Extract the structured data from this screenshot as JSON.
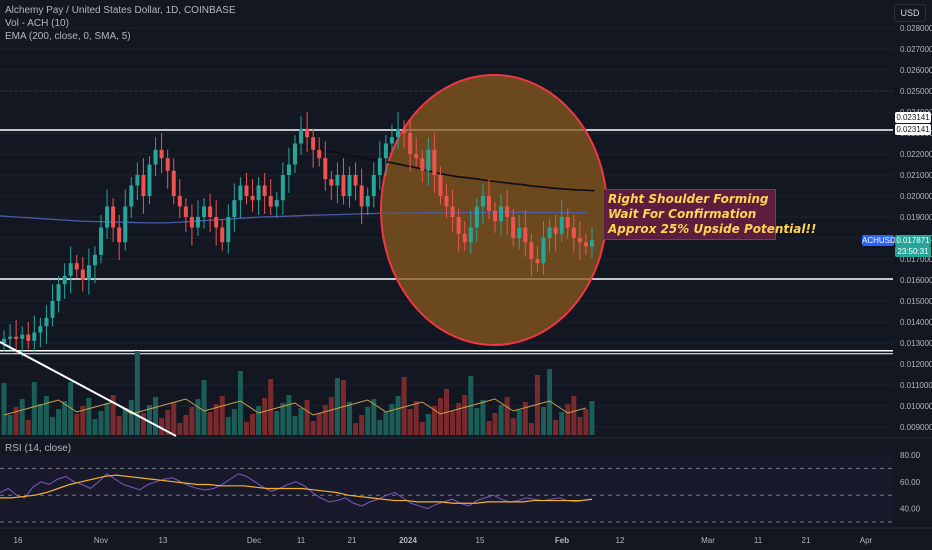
{
  "header": {
    "title": "Alchemy Pay / United States Dollar, 1D, COINBASE",
    "vol_label": "Vol - ACH (10)",
    "ema_label": "EMA (200, close, 0, SMA, 5)",
    "currency_button": "USD"
  },
  "price_axis": {
    "ticks": [
      "0.028000",
      "0.027000",
      "0.026000",
      "0.025000",
      "0.024000",
      "0.023000",
      "0.022000",
      "0.021000",
      "0.020000",
      "0.019000",
      "0.018000",
      "0.017000",
      "0.016000",
      "0.015000",
      "0.014000",
      "0.013000",
      "0.012000",
      "0.011000",
      "0.010000",
      "0.009000"
    ],
    "level_tags": [
      "0.023141",
      "0.023141"
    ],
    "symbol_tag": "ACHUSD",
    "last_price": "0.017871",
    "countdown": "23:50:31"
  },
  "rsi": {
    "label": "RSI (14, close)",
    "ticks": [
      "80.00",
      "60.00",
      "40.00"
    ]
  },
  "time_axis": {
    "labels": [
      "16",
      "Nov",
      "13",
      "Dec",
      "11",
      "21",
      "2024",
      "15",
      "Feb",
      "12",
      "Mar",
      "11",
      "21",
      "Apr"
    ]
  },
  "annotation": {
    "lines": [
      "Right Shoulder Forming",
      "Wait For Confirmation",
      "Approx 25% Upside Potential!!"
    ]
  },
  "colors": {
    "background": "#131722",
    "up_candle": "#26a69a",
    "down_candle": "#ef5350",
    "ema": "#4a5ba8",
    "circle_fill": "#8a5a1e",
    "circle_stroke": "#f23645",
    "annotation_text": "#ffd54f",
    "rsi_line": "#7e57c2",
    "rsi_ma": "#f2b12b"
  },
  "chart_data": {
    "type": "candlestick",
    "symbol": "ACHUSD",
    "y_range": [
      0.0085,
      0.0285
    ],
    "horizontal_levels": [
      0.023141,
      0.01605,
      0.01263
    ],
    "last_price": 0.017871,
    "closes": [
      0.0132,
      0.0133,
      0.0132,
      0.0134,
      0.0131,
      0.0135,
      0.0138,
      0.0142,
      0.015,
      0.0158,
      0.0162,
      0.0168,
      0.0165,
      0.016,
      0.0167,
      0.0172,
      0.0185,
      0.0195,
      0.0185,
      0.0178,
      0.0195,
      0.0205,
      0.021,
      0.02,
      0.0215,
      0.0222,
      0.0218,
      0.0212,
      0.02,
      0.0195,
      0.019,
      0.0185,
      0.019,
      0.0195,
      0.019,
      0.0185,
      0.0178,
      0.019,
      0.0198,
      0.0205,
      0.02,
      0.0198,
      0.0205,
      0.02,
      0.0195,
      0.0198,
      0.021,
      0.0215,
      0.0225,
      0.0232,
      0.0228,
      0.0222,
      0.0218,
      0.0208,
      0.0205,
      0.021,
      0.02,
      0.021,
      0.0205,
      0.0195,
      0.02,
      0.021,
      0.0218,
      0.0225,
      0.0228,
      0.0232,
      0.023,
      0.022,
      0.0218,
      0.0212,
      0.0222,
      0.021,
      0.02,
      0.0195,
      0.019,
      0.0182,
      0.0178,
      0.0185,
      0.0195,
      0.02,
      0.0193,
      0.0188,
      0.0195,
      0.019,
      0.018,
      0.0185,
      0.0178,
      0.017,
      0.0168,
      0.018,
      0.0185,
      0.0182,
      0.019,
      0.0185,
      0.018,
      0.0178,
      0.0176,
      0.0179
    ],
    "ema_200": [
      0.01905,
      0.019,
      0.01895,
      0.0189,
      0.01885,
      0.0188,
      0.01878,
      0.01876,
      0.01874,
      0.01872,
      0.01872,
      0.01875,
      0.0188,
      0.01885,
      0.0189,
      0.01895,
      0.019,
      0.01902,
      0.01905,
      0.01908,
      0.0191,
      0.01912,
      0.01915,
      0.01917,
      0.01918,
      0.01919,
      0.0192,
      0.0192,
      0.01921,
      0.01921,
      0.01922,
      0.01922,
      0.01923,
      0.01922,
      0.01922,
      0.01921,
      0.0192
    ],
    "ema_trend": [
      0.0224,
      0.02235,
      0.0223,
      0.02218,
      0.0221,
      0.022,
      0.0219,
      0.0218,
      0.02172,
      0.02165,
      0.02155,
      0.02145,
      0.02135,
      0.02122,
      0.0211,
      0.021,
      0.02092,
      0.02086,
      0.0208,
      0.02072,
      0.02066,
      0.0206,
      0.02055,
      0.02048,
      0.02043,
      0.02038,
      0.02034,
      0.0203,
      0.02028,
      0.02025
    ],
    "rsi_values": [
      52,
      55,
      50,
      48,
      56,
      60,
      58,
      62,
      64,
      60,
      58,
      55,
      60,
      66,
      62,
      58,
      56,
      54,
      58,
      60,
      62,
      63,
      60,
      57,
      55,
      54,
      55,
      58,
      62,
      66,
      64,
      60,
      56,
      53,
      55,
      58,
      60,
      57,
      52,
      48,
      45,
      46,
      48,
      44,
      42,
      45,
      47,
      50,
      52,
      48,
      44,
      42,
      40,
      43,
      45,
      47,
      44,
      42,
      46,
      48,
      50,
      47,
      45,
      46,
      48,
      47,
      46,
      47,
      48,
      46,
      45,
      46,
      47
    ],
    "rsi_ma": [
      48,
      48,
      49,
      50,
      52,
      55,
      58,
      60,
      62,
      64,
      65,
      64,
      63,
      62,
      61,
      60,
      59,
      58,
      58,
      57,
      57,
      57,
      56,
      55,
      55,
      55,
      55,
      54,
      53,
      52,
      50,
      49,
      48,
      47,
      46,
      46,
      45,
      45,
      45,
      44,
      44,
      44,
      45,
      45,
      45,
      45,
      46,
      46,
      46,
      46,
      46,
      47
    ]
  }
}
